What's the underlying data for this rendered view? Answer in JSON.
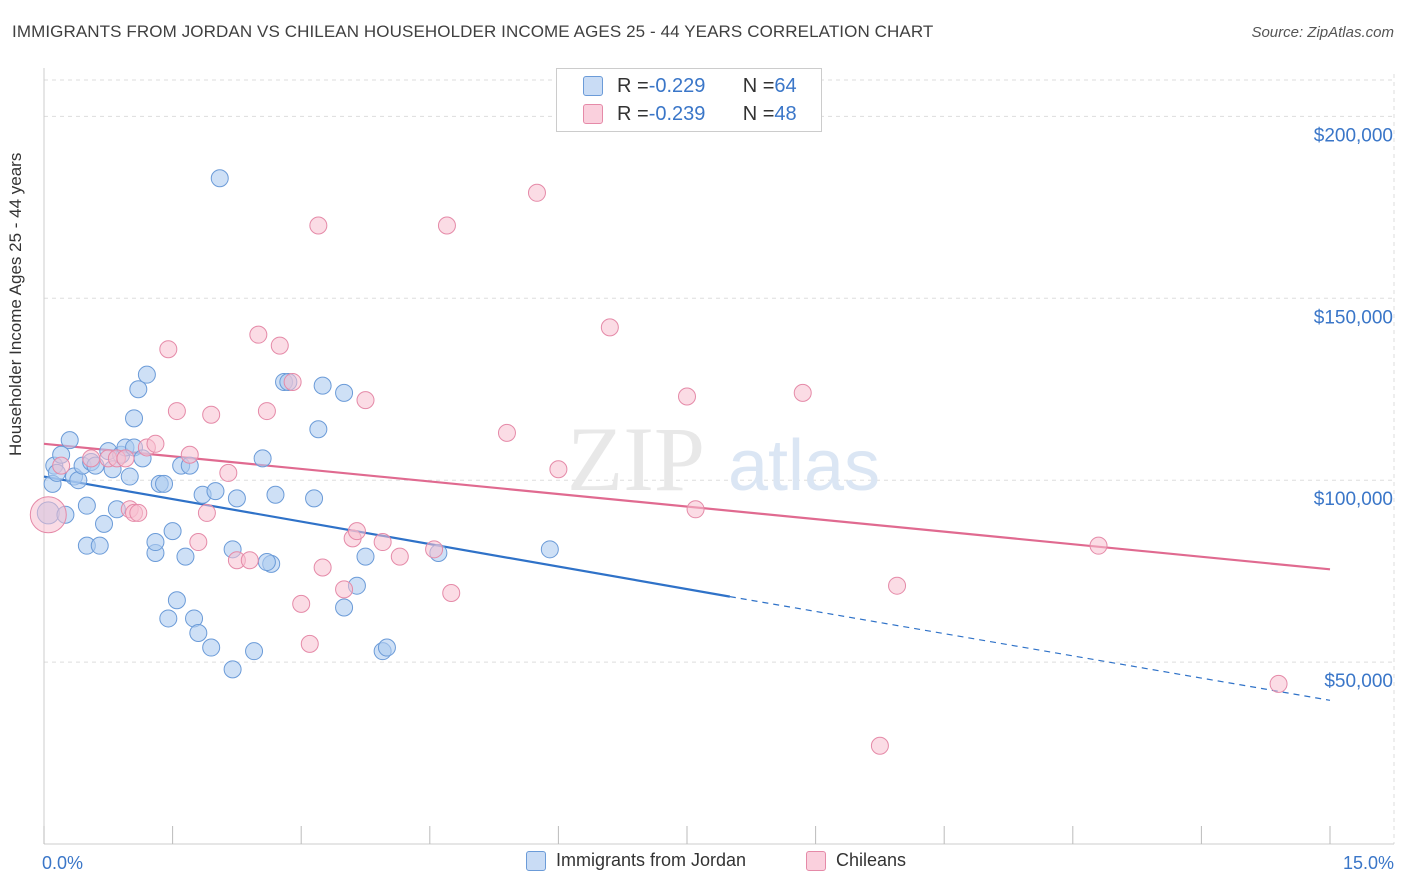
{
  "title": "IMMIGRANTS FROM JORDAN VS CHILEAN HOUSEHOLDER INCOME AGES 25 - 44 YEARS CORRELATION CHART",
  "source": "Source: ZipAtlas.com",
  "watermark": {
    "zip": "ZIP",
    "atlas": "atlas"
  },
  "colors": {
    "blue_fill": "#aecbf0",
    "blue_stroke": "#6b9bd8",
    "blue_line": "#2f72c8",
    "pink_fill": "#f7bfd0",
    "pink_stroke": "#e58aa8",
    "pink_line": "#e06a90",
    "tick_label": "#3a76c8",
    "grid": "#dddddd"
  },
  "legend": {
    "rows": [
      {
        "r_label": "R = ",
        "r_value": "-0.229",
        "n_label": "N = ",
        "n_value": "64"
      },
      {
        "r_label": "R = ",
        "r_value": "-0.239",
        "n_label": "N = ",
        "n_value": "48"
      }
    ]
  },
  "bottom_legend": {
    "series1": "Immigrants from Jordan",
    "series2": "Chileans"
  },
  "chart_data": {
    "type": "scatter",
    "title": "IMMIGRANTS FROM JORDAN VS CHILEAN HOUSEHOLDER INCOME AGES 25 - 44 YEARS CORRELATION CHART",
    "xlabel": "",
    "ylabel": "Householder Income Ages 25 - 44 years",
    "xlim": [
      0,
      15
    ],
    "ylim": [
      0,
      210000
    ],
    "x_tick_labels": [
      "0.0%",
      "15.0%"
    ],
    "y_ticks": [
      50000,
      100000,
      150000,
      200000
    ],
    "y_tick_labels": [
      "$50,000",
      "$100,000",
      "$150,000",
      "$200,000"
    ],
    "grid": true,
    "legend_position": "top-center",
    "series": [
      {
        "name": "Immigrants from Jordan",
        "color": "#aecbf0",
        "r": -0.229,
        "n": 64,
        "trend": {
          "x": [
            0.0,
            8.0
          ],
          "y": [
            101000,
            68000
          ],
          "dashed_extension_to": [
            15.0,
            39500
          ]
        },
        "points": [
          [
            0.05,
            91000
          ],
          [
            0.1,
            99000
          ],
          [
            0.12,
            104000
          ],
          [
            0.15,
            102000
          ],
          [
            0.2,
            107000
          ],
          [
            0.3,
            111000
          ],
          [
            0.35,
            101000
          ],
          [
            0.4,
            100000
          ],
          [
            0.45,
            104000
          ],
          [
            0.5,
            82000
          ],
          [
            0.5,
            93000
          ],
          [
            0.55,
            105000
          ],
          [
            0.6,
            104000
          ],
          [
            0.65,
            82000
          ],
          [
            0.7,
            88000
          ],
          [
            0.75,
            108000
          ],
          [
            0.8,
            103000
          ],
          [
            0.85,
            92000
          ],
          [
            0.9,
            107000
          ],
          [
            0.95,
            109000
          ],
          [
            1.0,
            101000
          ],
          [
            1.05,
            109000
          ],
          [
            1.05,
            117000
          ],
          [
            1.1,
            125000
          ],
          [
            1.15,
            106000
          ],
          [
            1.2,
            129000
          ],
          [
            1.3,
            80000
          ],
          [
            1.3,
            83000
          ],
          [
            1.35,
            99000
          ],
          [
            1.4,
            99000
          ],
          [
            1.45,
            62000
          ],
          [
            1.5,
            86000
          ],
          [
            1.55,
            67000
          ],
          [
            1.6,
            104000
          ],
          [
            1.65,
            79000
          ],
          [
            1.7,
            104000
          ],
          [
            1.75,
            62000
          ],
          [
            1.8,
            58000
          ],
          [
            1.85,
            96000
          ],
          [
            1.95,
            54000
          ],
          [
            2.0,
            97000
          ],
          [
            2.05,
            183000
          ],
          [
            2.2,
            81000
          ],
          [
            2.2,
            48000
          ],
          [
            2.25,
            95000
          ],
          [
            2.45,
            53000
          ],
          [
            2.55,
            106000
          ],
          [
            2.65,
            77000
          ],
          [
            2.7,
            96000
          ],
          [
            2.8,
            127000
          ],
          [
            2.85,
            127000
          ],
          [
            3.15,
            95000
          ],
          [
            3.2,
            114000
          ],
          [
            3.25,
            126000
          ],
          [
            3.5,
            65000
          ],
          [
            3.5,
            124000
          ],
          [
            3.65,
            71000
          ],
          [
            3.75,
            79000
          ],
          [
            3.95,
            53000
          ],
          [
            4.0,
            54000
          ],
          [
            4.6,
            80000
          ],
          [
            5.9,
            81000
          ],
          [
            2.6,
            77500
          ],
          [
            0.25,
            90500
          ]
        ]
      },
      {
        "name": "Chileans",
        "color": "#f7bfd0",
        "r": -0.239,
        "n": 48,
        "trend": {
          "x": [
            0.0,
            15.0
          ],
          "y": [
            110000,
            75500
          ]
        },
        "points": [
          [
            0.05,
            90500
          ],
          [
            0.2,
            104000
          ],
          [
            0.55,
            106000
          ],
          [
            0.75,
            106000
          ],
          [
            0.85,
            106000
          ],
          [
            0.95,
            106000
          ],
          [
            1.0,
            92000
          ],
          [
            1.05,
            91000
          ],
          [
            1.1,
            91000
          ],
          [
            1.2,
            109000
          ],
          [
            1.3,
            110000
          ],
          [
            1.45,
            136000
          ],
          [
            1.55,
            119000
          ],
          [
            1.7,
            107000
          ],
          [
            1.8,
            83000
          ],
          [
            1.9,
            91000
          ],
          [
            1.95,
            118000
          ],
          [
            2.15,
            102000
          ],
          [
            2.25,
            78000
          ],
          [
            2.4,
            78000
          ],
          [
            2.5,
            140000
          ],
          [
            2.6,
            119000
          ],
          [
            2.75,
            137000
          ],
          [
            2.9,
            127000
          ],
          [
            3.0,
            66000
          ],
          [
            3.1,
            55000
          ],
          [
            3.2,
            170000
          ],
          [
            3.25,
            76000
          ],
          [
            3.5,
            70000
          ],
          [
            3.6,
            84000
          ],
          [
            3.65,
            86000
          ],
          [
            3.75,
            122000
          ],
          [
            3.95,
            83000
          ],
          [
            4.15,
            79000
          ],
          [
            4.55,
            81000
          ],
          [
            4.7,
            170000
          ],
          [
            4.75,
            69000
          ],
          [
            5.4,
            113000
          ],
          [
            5.75,
            179000
          ],
          [
            6.0,
            103000
          ],
          [
            6.6,
            142000
          ],
          [
            7.5,
            123000
          ],
          [
            7.6,
            92000
          ],
          [
            8.85,
            124000
          ],
          [
            9.75,
            27000
          ],
          [
            9.95,
            71000
          ],
          [
            12.3,
            82000
          ],
          [
            14.4,
            44000
          ]
        ]
      }
    ]
  }
}
